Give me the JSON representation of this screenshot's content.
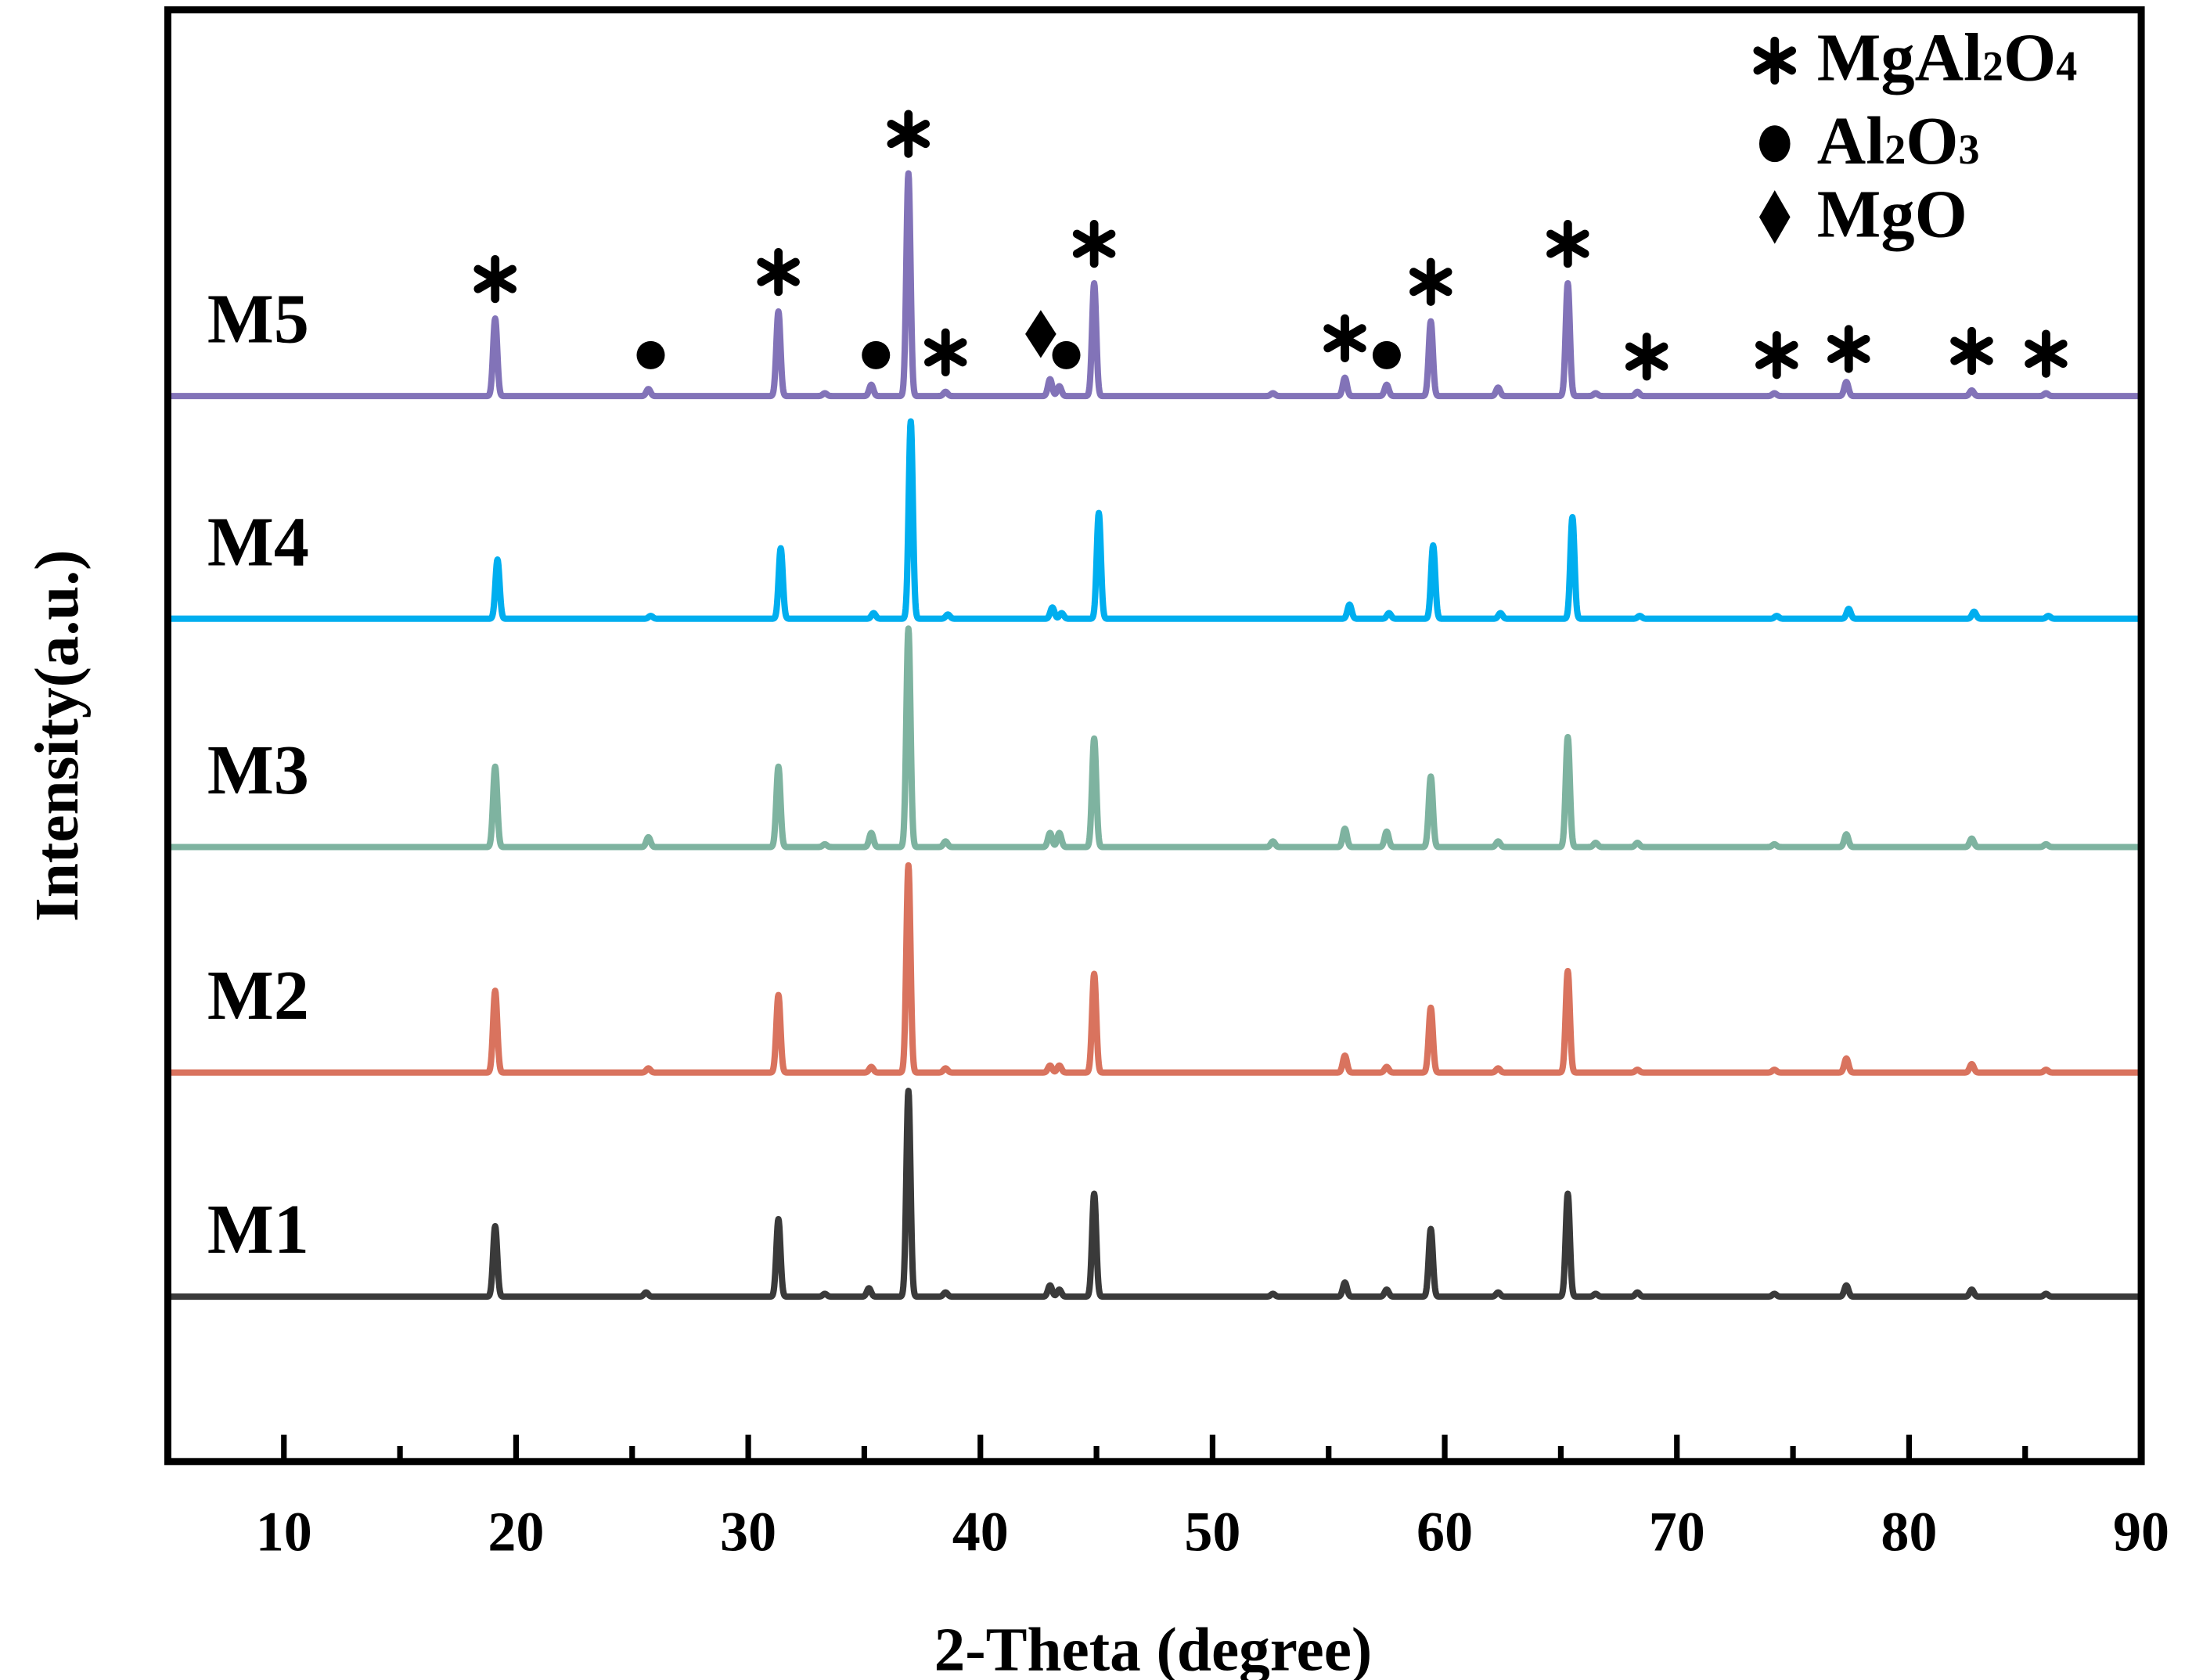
{
  "chart_data": {
    "type": "line",
    "xlabel": "2-Theta (degree)",
    "ylabel": "Intensity(a.u.)",
    "xlim": [
      5,
      90
    ],
    "xticks": [
      "10",
      "20",
      "30",
      "40",
      "50",
      "60",
      "70",
      "80",
      "90"
    ],
    "xtick_values": [
      10,
      20,
      30,
      40,
      50,
      60,
      70,
      80,
      90
    ],
    "grid": false,
    "series": [
      {
        "name": "M5",
        "color": "#8273b8",
        "peaks": [
          [
            19.1,
            55
          ],
          [
            25.7,
            5
          ],
          [
            31.3,
            60
          ],
          [
            33.3,
            2
          ],
          [
            35.3,
            8
          ],
          [
            36.9,
            158
          ],
          [
            38.5,
            3
          ],
          [
            43.0,
            12
          ],
          [
            43.4,
            7
          ],
          [
            44.9,
            80
          ],
          [
            52.6,
            2
          ],
          [
            55.7,
            13
          ],
          [
            57.5,
            8
          ],
          [
            59.4,
            53
          ],
          [
            62.3,
            6
          ],
          [
            65.3,
            80
          ],
          [
            66.5,
            2
          ],
          [
            68.3,
            3
          ],
          [
            74.2,
            2
          ],
          [
            77.3,
            10
          ],
          [
            82.7,
            4
          ],
          [
            85.9,
            2
          ]
        ]
      },
      {
        "name": "M4",
        "color": "#00aeef",
        "peaks": [
          [
            19.2,
            42
          ],
          [
            25.8,
            2
          ],
          [
            31.4,
            50
          ],
          [
            35.4,
            4
          ],
          [
            37.0,
            140
          ],
          [
            38.6,
            3
          ],
          [
            43.1,
            8
          ],
          [
            43.5,
            4
          ],
          [
            45.1,
            75
          ],
          [
            55.9,
            10
          ],
          [
            57.6,
            4
          ],
          [
            59.5,
            52
          ],
          [
            62.4,
            4
          ],
          [
            65.5,
            72
          ],
          [
            68.4,
            2
          ],
          [
            74.3,
            2
          ],
          [
            77.4,
            7
          ],
          [
            82.8,
            5
          ],
          [
            86.0,
            2
          ]
        ]
      },
      {
        "name": "M3",
        "color": "#7eb3a0",
        "peaks": [
          [
            19.1,
            57
          ],
          [
            25.7,
            7
          ],
          [
            31.3,
            57
          ],
          [
            33.3,
            2
          ],
          [
            35.3,
            10
          ],
          [
            36.9,
            155
          ],
          [
            38.5,
            4
          ],
          [
            43.0,
            10
          ],
          [
            43.4,
            10
          ],
          [
            44.9,
            77
          ],
          [
            52.6,
            4
          ],
          [
            55.7,
            13
          ],
          [
            57.5,
            11
          ],
          [
            59.4,
            50
          ],
          [
            62.3,
            4
          ],
          [
            65.3,
            78
          ],
          [
            66.5,
            3
          ],
          [
            68.3,
            3
          ],
          [
            74.2,
            2
          ],
          [
            77.3,
            9
          ],
          [
            82.7,
            6
          ],
          [
            85.9,
            2
          ]
        ]
      },
      {
        "name": "M2",
        "color": "#d9735e",
        "peaks": [
          [
            19.1,
            58
          ],
          [
            25.7,
            3
          ],
          [
            31.3,
            55
          ],
          [
            35.3,
            4
          ],
          [
            36.9,
            147
          ],
          [
            38.5,
            3
          ],
          [
            43.0,
            5
          ],
          [
            43.4,
            5
          ],
          [
            44.9,
            70
          ],
          [
            55.7,
            12
          ],
          [
            57.5,
            4
          ],
          [
            59.4,
            46
          ],
          [
            62.3,
            3
          ],
          [
            65.3,
            72
          ],
          [
            68.3,
            2
          ],
          [
            74.2,
            2
          ],
          [
            77.3,
            10
          ],
          [
            82.7,
            6
          ],
          [
            85.9,
            2
          ]
        ]
      },
      {
        "name": "M1",
        "color": "#3a3a3a",
        "peaks": [
          [
            19.1,
            50
          ],
          [
            25.6,
            3
          ],
          [
            31.3,
            55
          ],
          [
            33.3,
            2
          ],
          [
            35.2,
            6
          ],
          [
            36.9,
            146
          ],
          [
            38.5,
            3
          ],
          [
            43.0,
            8
          ],
          [
            43.4,
            5
          ],
          [
            44.9,
            73
          ],
          [
            52.6,
            2
          ],
          [
            55.7,
            10
          ],
          [
            57.5,
            5
          ],
          [
            59.4,
            48
          ],
          [
            62.3,
            3
          ],
          [
            65.3,
            73
          ],
          [
            66.5,
            2
          ],
          [
            68.3,
            3
          ],
          [
            74.2,
            2
          ],
          [
            77.3,
            8
          ],
          [
            82.7,
            5
          ],
          [
            85.9,
            2
          ]
        ]
      }
    ],
    "phase_markers": {
      "MgAl2O4": [
        19.1,
        31.3,
        36.9,
        38.5,
        44.9,
        55.7,
        59.4,
        65.3,
        68.7,
        74.3,
        77.4,
        82.7,
        85.9
      ],
      "Al2O3": [
        25.8,
        35.5,
        43.7,
        57.5
      ],
      "MgO": [
        42.6
      ]
    },
    "legend": {
      "placement": "top-right",
      "entries": [
        {
          "symbol": "asterisk",
          "label": "MgAl",
          "sub1": "2",
          "mid": "O",
          "sub2": "4"
        },
        {
          "symbol": "circle",
          "label": "Al",
          "sub1": "2",
          "mid": "O",
          "sub2": "3"
        },
        {
          "symbol": "diamond",
          "label": "MgO",
          "sub1": "",
          "mid": "",
          "sub2": ""
        }
      ]
    }
  }
}
